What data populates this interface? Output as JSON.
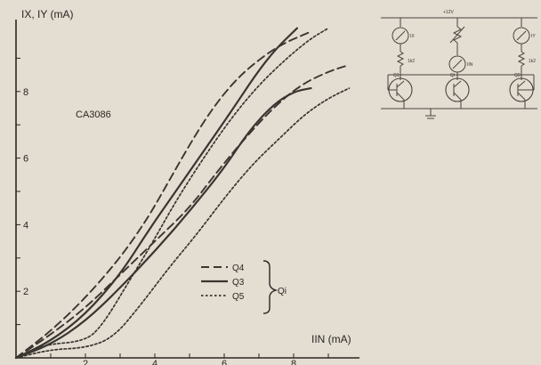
{
  "chart_data": {
    "type": "line",
    "ylabel": "IX, IY (mA)",
    "xlabel": "IIN (mA)",
    "annotation": "CA3086",
    "xlim": [
      0,
      10
    ],
    "ylim": [
      0,
      10
    ],
    "x_ticks": [
      {
        "value": 2,
        "label": "2"
      },
      {
        "value": 4,
        "label": "4"
      },
      {
        "value": 6,
        "label": "6"
      },
      {
        "value": 8,
        "label": "8"
      }
    ],
    "y_ticks": [
      {
        "value": 2,
        "label": "2"
      },
      {
        "value": 4,
        "label": "4"
      },
      {
        "value": 6,
        "label": "6"
      },
      {
        "value": 8,
        "label": "8"
      }
    ],
    "legend_group_label": "Qi",
    "series": [
      {
        "name": "Q4",
        "style": "dashed",
        "curves": [
          {
            "x": [
              0,
              1,
              2,
              3,
              3.8,
              4.4,
              5,
              5.6,
              6.2,
              6.8,
              7.6,
              8.5
            ],
            "y": [
              0,
              0.8,
              1.8,
              3.0,
              4.2,
              5.3,
              6.4,
              7.4,
              8.2,
              8.8,
              9.4,
              9.8
            ]
          },
          {
            "x": [
              0,
              1,
              2,
              3,
              4,
              5,
              5.8,
              6.6,
              7.4,
              8.2,
              9,
              9.6
            ],
            "y": [
              0,
              0.7,
              1.5,
              2.5,
              3.5,
              4.5,
              5.6,
              6.6,
              7.5,
              8.2,
              8.6,
              8.8
            ]
          }
        ]
      },
      {
        "name": "Q3",
        "style": "solid",
        "curves": [
          {
            "x": [
              0,
              1,
              2,
              3,
              3.8,
              4.6,
              5.4,
              6.2,
              6.9,
              7.5,
              8.1
            ],
            "y": [
              0,
              0.5,
              1.3,
              2.5,
              3.8,
              5.0,
              6.2,
              7.4,
              8.5,
              9.3,
              9.9
            ]
          },
          {
            "x": [
              0,
              1,
              2,
              3,
              4,
              5,
              6,
              6.7,
              7.4,
              8.0,
              8.5
            ],
            "y": [
              0,
              0.4,
              1.1,
              2.1,
              3.2,
              4.4,
              5.7,
              6.8,
              7.6,
              8.0,
              8.1
            ]
          }
        ]
      },
      {
        "name": "Q5",
        "style": "dotted",
        "curves": [
          {
            "x": [
              0,
              0.8,
              2,
              2.5,
              3.2,
              3.9,
              4.6,
              5.4,
              6.2,
              7.0,
              7.8,
              8.5,
              9.0
            ],
            "y": [
              0,
              0.4,
              0.5,
              1.0,
              2.2,
              3.4,
              4.7,
              6.0,
              7.2,
              8.2,
              9.0,
              9.6,
              9.9
            ]
          },
          {
            "x": [
              0,
              1,
              2,
              2.8,
              3.6,
              4.4,
              5.2,
              6.0,
              6.8,
              7.6,
              8.3,
              9.0,
              9.6
            ],
            "y": [
              0,
              0.25,
              0.3,
              0.6,
              1.6,
              2.7,
              3.7,
              4.8,
              5.8,
              6.6,
              7.3,
              7.8,
              8.1
            ]
          }
        ]
      }
    ],
    "legend_position": "bottom-right"
  },
  "circuit": {
    "supply_label": "+12V",
    "meter_left_label": "IX",
    "meter_center_label": "IIN",
    "meter_right_label": "IY",
    "resistor_left_label": "1k2",
    "resistor_right_label": "1k2",
    "transistor_left_label": "Q1",
    "transistor_center_label": "Qi",
    "transistor_right_label": "Q2"
  },
  "colors": {
    "background": "#e3ddd2",
    "ink": "#2a2622",
    "series_ink": "#3a3530",
    "circuit_ink": "#4a443d"
  }
}
